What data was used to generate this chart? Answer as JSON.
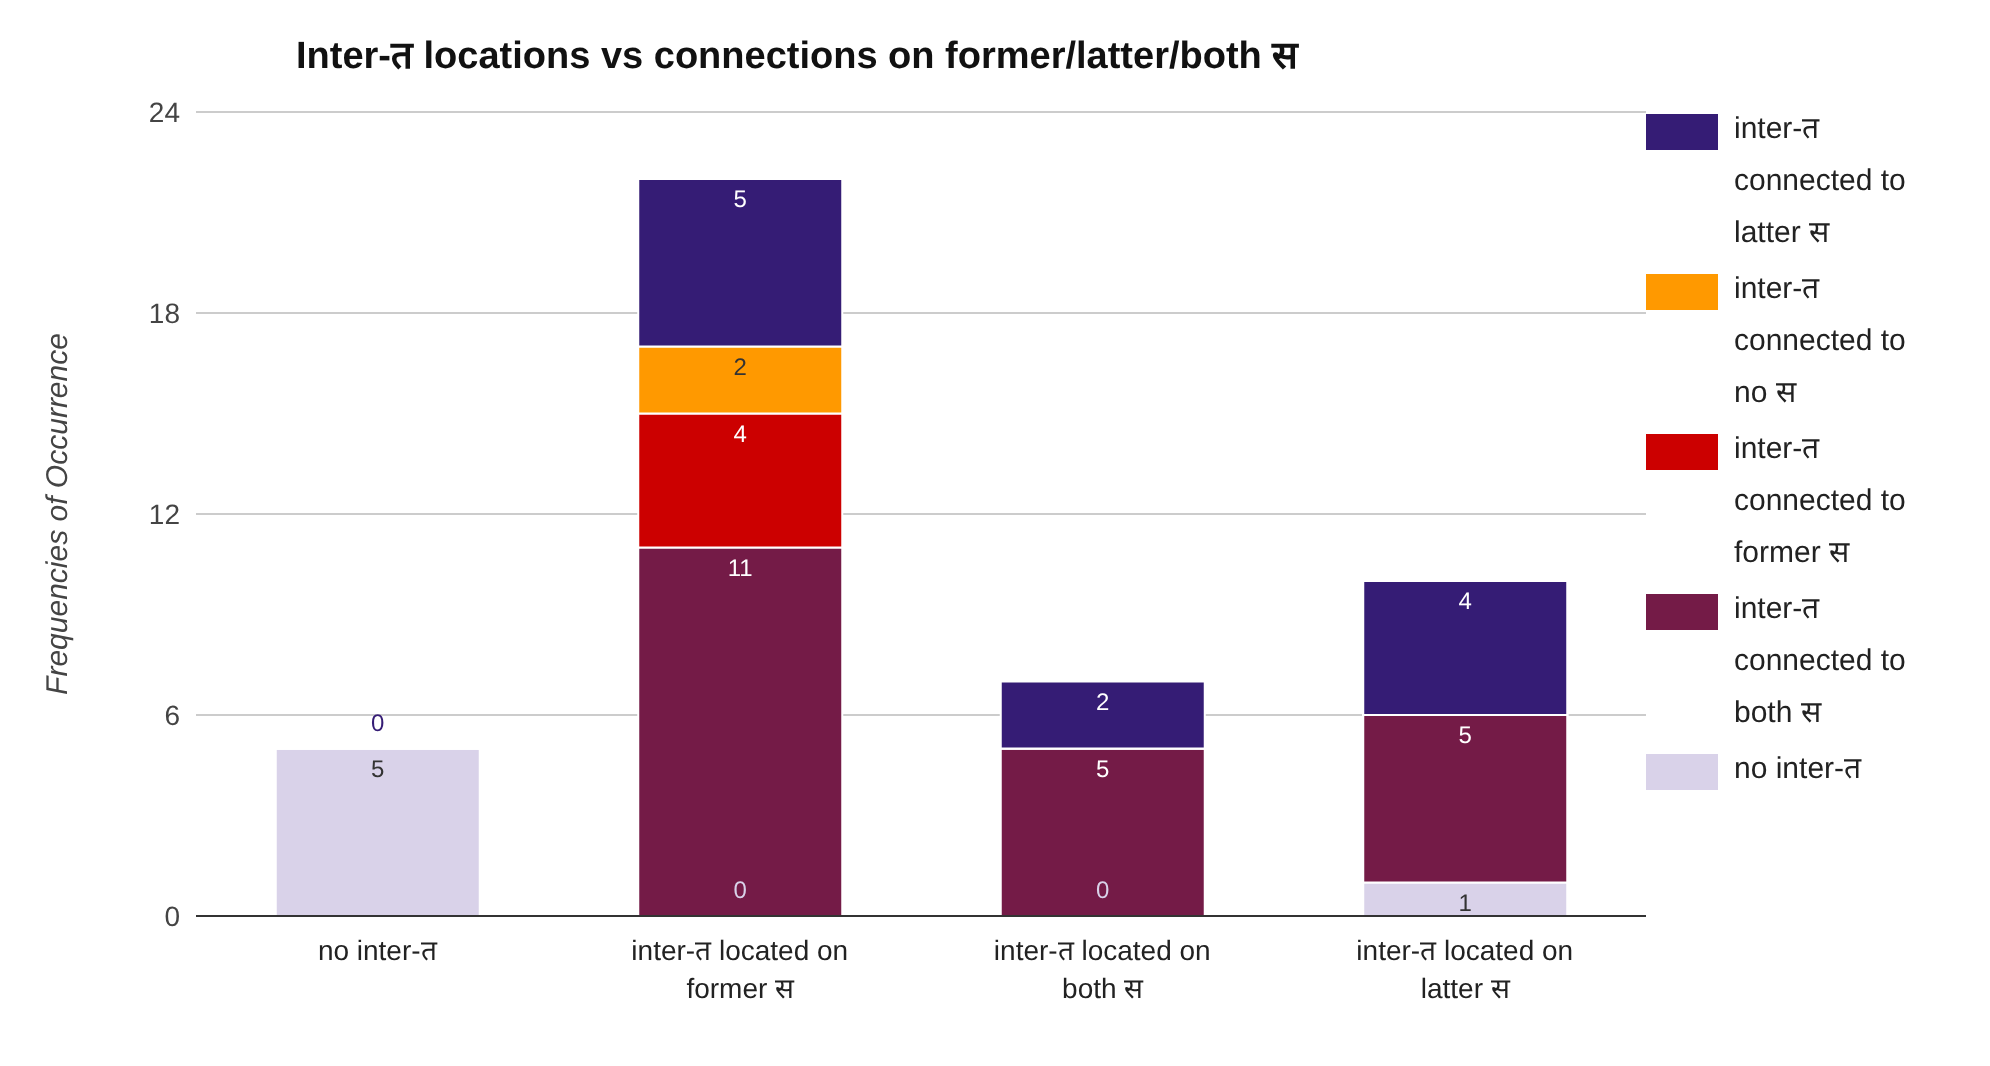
{
  "chart_data": {
    "type": "bar",
    "title": "Inter-त locations vs connections on former/latter/both स",
    "ylabel": "Frequencies of Occurrence",
    "categories": [
      "no inter-त",
      "inter-त located on former स",
      "inter-त located on both स",
      "inter-त located on latter स"
    ],
    "stacked": true,
    "ylim": [
      0,
      24
    ],
    "yticks": [
      0,
      6,
      12,
      18,
      24
    ],
    "grid": "y",
    "legend": "right",
    "series": [
      {
        "name": "no inter-त",
        "color": "#d9d2e9",
        "values": [
          5,
          0,
          0,
          1
        ],
        "value_labels": [
          "5",
          "0",
          "0",
          "1"
        ]
      },
      {
        "name": "inter-त connected to both स",
        "color": "#741b47",
        "values": [
          0,
          11,
          5,
          5
        ],
        "value_labels": [
          null,
          "11",
          "5",
          "5"
        ]
      },
      {
        "name": "inter-त connected to former स",
        "color": "#cc0000",
        "values": [
          0,
          4,
          0,
          0
        ],
        "value_labels": [
          null,
          "4",
          null,
          null
        ]
      },
      {
        "name": "inter-त connected to no स",
        "color": "#ff9900",
        "values": [
          0,
          2,
          0,
          0
        ],
        "value_labels": [
          null,
          "2",
          null,
          null
        ]
      },
      {
        "name": "inter-त connected to latter स",
        "color": "#351c75",
        "values": [
          0,
          5,
          2,
          4
        ],
        "value_labels": [
          "0",
          "5",
          "2",
          "4"
        ]
      }
    ]
  }
}
